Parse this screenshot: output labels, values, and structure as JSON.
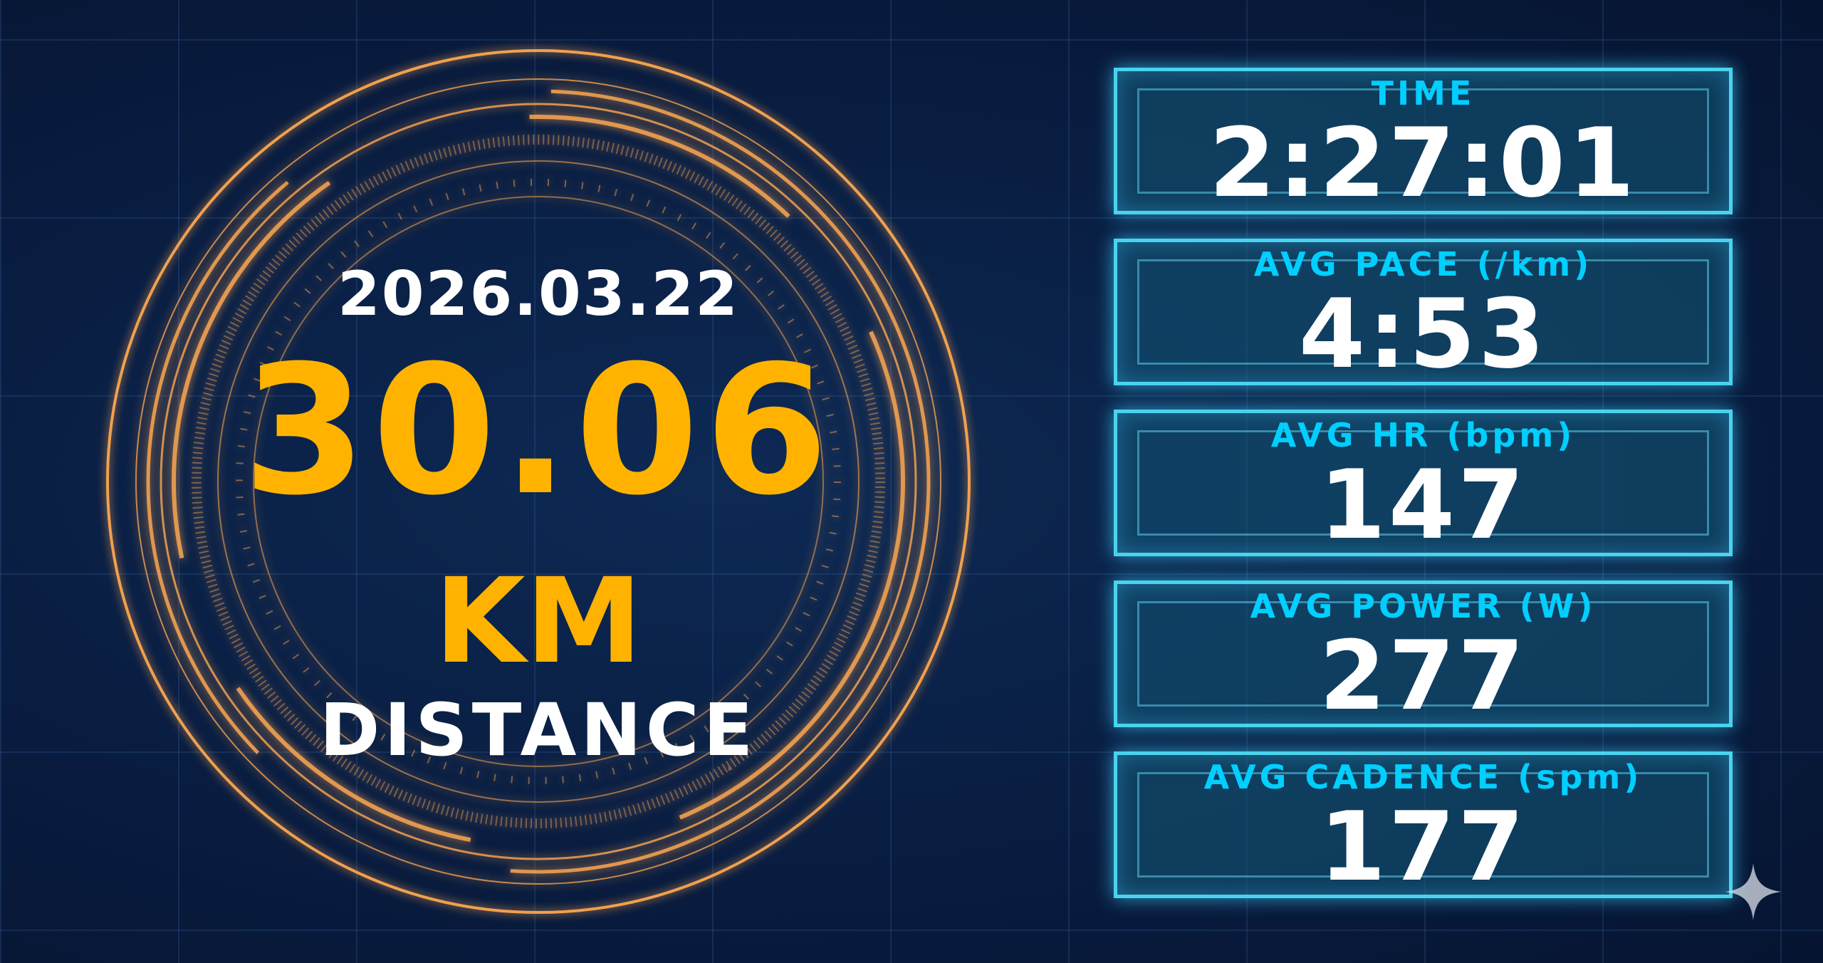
{
  "colors": {
    "accent_orange": "#ffb300",
    "accent_cyan": "#00cfff",
    "background": "#0a1f44",
    "ring": "#f0a050"
  },
  "summary": {
    "date": "2026.03.22",
    "distance": "30.06",
    "unit": "KM",
    "distance_label": "DISTANCE"
  },
  "stats": [
    {
      "label": "TIME",
      "value": "2:27:01"
    },
    {
      "label": "AVG PACE (/km)",
      "value": "4:53"
    },
    {
      "label": "AVG HR (bpm)",
      "value": "147"
    },
    {
      "label": "AVG POWER (W)",
      "value": "277"
    },
    {
      "label": "AVG CADENCE (spm)",
      "value": "177"
    }
  ],
  "icons": {
    "corner": "sparkle-icon"
  }
}
